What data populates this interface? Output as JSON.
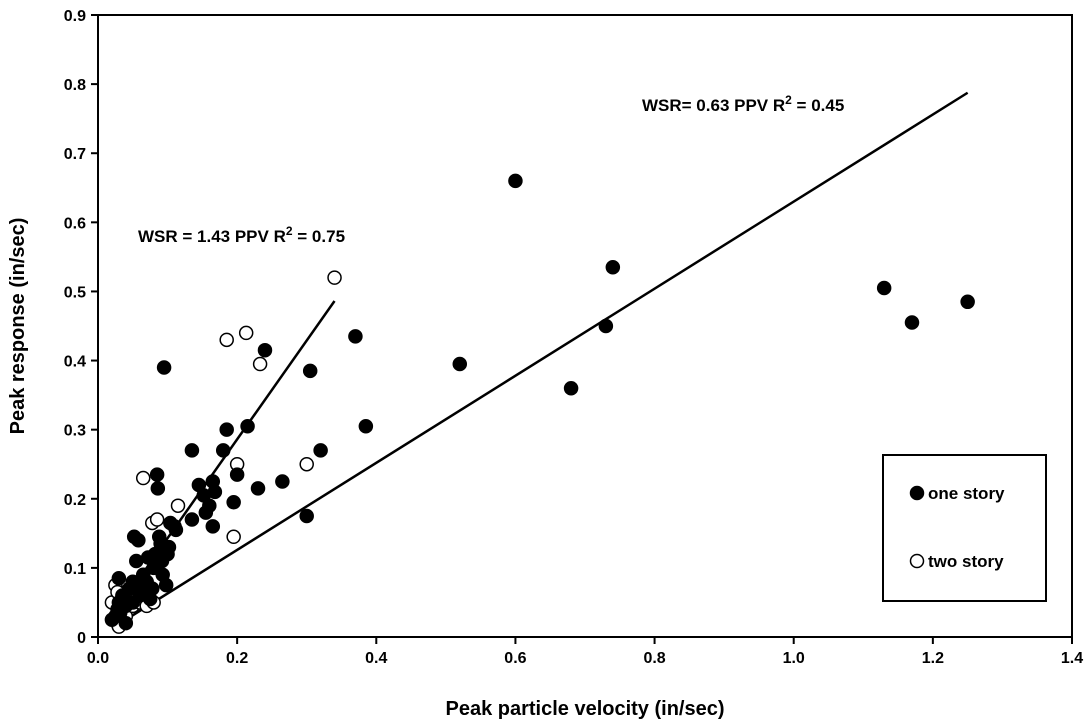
{
  "chart_data": {
    "type": "scatter",
    "xlabel": "Peak particle velocity (in/sec)",
    "ylabel": "Peak response (in/sec)",
    "xlim": [
      0,
      1.4
    ],
    "ylim": [
      0,
      0.9
    ],
    "x_ticks": [
      "0.0",
      "0.2",
      "0.4",
      "0.6",
      "0.8",
      "1.0",
      "1.2",
      "1.4"
    ],
    "y_ticks": [
      "0",
      "0.1",
      "0.2",
      "0.3",
      "0.4",
      "0.5",
      "0.6",
      "0.7",
      "0.8",
      "0.9"
    ],
    "grid": false,
    "legend_position": "lower-right",
    "series": [
      {
        "name": "one story",
        "marker": "filled-circle",
        "color": "#000000",
        "points": [
          [
            0.02,
            0.025
          ],
          [
            0.025,
            0.03
          ],
          [
            0.028,
            0.04
          ],
          [
            0.03,
            0.05
          ],
          [
            0.032,
            0.035
          ],
          [
            0.035,
            0.06
          ],
          [
            0.03,
            0.085
          ],
          [
            0.04,
            0.02
          ],
          [
            0.04,
            0.045
          ],
          [
            0.045,
            0.07
          ],
          [
            0.05,
            0.08
          ],
          [
            0.05,
            0.05
          ],
          [
            0.052,
            0.145
          ],
          [
            0.055,
            0.11
          ],
          [
            0.058,
            0.14
          ],
          [
            0.06,
            0.06
          ],
          [
            0.062,
            0.075
          ],
          [
            0.065,
            0.09
          ],
          [
            0.068,
            0.065
          ],
          [
            0.07,
            0.08
          ],
          [
            0.072,
            0.115
          ],
          [
            0.075,
            0.055
          ],
          [
            0.078,
            0.07
          ],
          [
            0.08,
            0.1
          ],
          [
            0.082,
            0.12
          ],
          [
            0.085,
            0.235
          ],
          [
            0.086,
            0.215
          ],
          [
            0.088,
            0.145
          ],
          [
            0.09,
            0.135
          ],
          [
            0.092,
            0.11
          ],
          [
            0.093,
            0.09
          ],
          [
            0.095,
            0.39
          ],
          [
            0.098,
            0.075
          ],
          [
            0.1,
            0.12
          ],
          [
            0.102,
            0.13
          ],
          [
            0.104,
            0.165
          ],
          [
            0.11,
            0.16
          ],
          [
            0.112,
            0.155
          ],
          [
            0.135,
            0.27
          ],
          [
            0.135,
            0.17
          ],
          [
            0.145,
            0.22
          ],
          [
            0.152,
            0.205
          ],
          [
            0.155,
            0.18
          ],
          [
            0.16,
            0.19
          ],
          [
            0.165,
            0.225
          ],
          [
            0.165,
            0.16
          ],
          [
            0.168,
            0.21
          ],
          [
            0.18,
            0.27
          ],
          [
            0.185,
            0.3
          ],
          [
            0.195,
            0.195
          ],
          [
            0.2,
            0.235
          ],
          [
            0.215,
            0.305
          ],
          [
            0.23,
            0.215
          ],
          [
            0.24,
            0.415
          ],
          [
            0.265,
            0.225
          ],
          [
            0.3,
            0.175
          ],
          [
            0.305,
            0.385
          ],
          [
            0.32,
            0.27
          ],
          [
            0.37,
            0.435
          ],
          [
            0.385,
            0.305
          ],
          [
            0.52,
            0.395
          ],
          [
            0.6,
            0.66
          ],
          [
            0.68,
            0.36
          ],
          [
            0.73,
            0.45
          ],
          [
            0.74,
            0.535
          ],
          [
            1.13,
            0.505
          ],
          [
            1.17,
            0.455
          ],
          [
            1.25,
            0.485
          ]
        ]
      },
      {
        "name": "two story",
        "marker": "open-circle",
        "color": "#000000",
        "points": [
          [
            0.02,
            0.05
          ],
          [
            0.025,
            0.075
          ],
          [
            0.028,
            0.065
          ],
          [
            0.03,
            0.015
          ],
          [
            0.035,
            0.04
          ],
          [
            0.04,
            0.03
          ],
          [
            0.042,
            0.055
          ],
          [
            0.05,
            0.045
          ],
          [
            0.055,
            0.06
          ],
          [
            0.06,
            0.05
          ],
          [
            0.065,
            0.23
          ],
          [
            0.07,
            0.045
          ],
          [
            0.078,
            0.165
          ],
          [
            0.08,
            0.05
          ],
          [
            0.085,
            0.17
          ],
          [
            0.09,
            0.11
          ],
          [
            0.115,
            0.19
          ],
          [
            0.185,
            0.43
          ],
          [
            0.195,
            0.145
          ],
          [
            0.2,
            0.25
          ],
          [
            0.213,
            0.44
          ],
          [
            0.233,
            0.395
          ],
          [
            0.3,
            0.25
          ],
          [
            0.34,
            0.52
          ]
        ]
      }
    ],
    "trendlines": [
      {
        "slope": 1.43,
        "x_range": [
          0.02,
          0.34
        ],
        "label": "WSR = 1.43 PPV  R",
        "exponent": "2",
        "r2_text": " = 0.75"
      },
      {
        "slope": 0.63,
        "x_range": [
          0.02,
          1.25
        ],
        "label": "WSR= 0.63 PPV  R",
        "exponent": "2",
        "r2_text": " = 0.45"
      }
    ]
  }
}
